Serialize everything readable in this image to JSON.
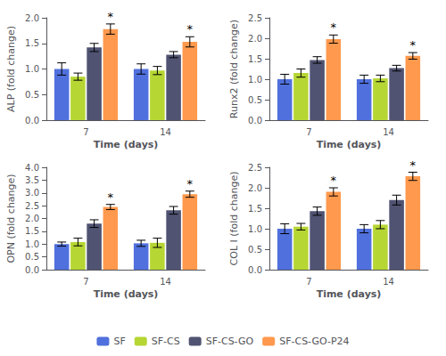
{
  "chart_data": [
    {
      "type": "bar",
      "xlabel": "Time (days)",
      "ylabel": "ALP (fold change)",
      "categories": [
        "7",
        "14"
      ],
      "series": [
        {
          "name": "SF",
          "values": [
            1.0,
            1.0
          ],
          "errors": [
            0.12,
            0.1
          ]
        },
        {
          "name": "SF-CS",
          "values": [
            0.85,
            0.97
          ],
          "errors": [
            0.07,
            0.08
          ]
        },
        {
          "name": "SF-CS-GO",
          "values": [
            1.42,
            1.28
          ],
          "errors": [
            0.08,
            0.06
          ]
        },
        {
          "name": "SF-CS-GO-P24",
          "values": [
            1.78,
            1.53
          ],
          "errors": [
            0.1,
            0.1
          ]
        }
      ],
      "annotations": [
        {
          "text": "*",
          "x": "7",
          "series": "SF-CS-GO-P24"
        },
        {
          "text": "*",
          "x": "14",
          "series": "SF-CS-GO-P24"
        }
      ],
      "ylim": [
        0,
        2
      ],
      "yticks": [
        {
          "value": 0,
          "label": "0.0"
        },
        0.5,
        {
          "value": 1,
          "label": "1.0"
        },
        1.5,
        {
          "value": 2,
          "label": "2.0"
        }
      ],
      "grid": false,
      "legend": "bottom"
    },
    {
      "type": "bar",
      "xlabel": "Time (days)",
      "ylabel": "Runx2 (fold change)",
      "categories": [
        "7",
        "14"
      ],
      "series": [
        {
          "name": "SF",
          "values": [
            1.0,
            1.0
          ],
          "errors": [
            0.12,
            0.1
          ]
        },
        {
          "name": "SF-CS",
          "values": [
            1.15,
            1.02
          ],
          "errors": [
            0.1,
            0.08
          ]
        },
        {
          "name": "SF-CS-GO",
          "values": [
            1.47,
            1.27
          ],
          "errors": [
            0.08,
            0.07
          ]
        },
        {
          "name": "SF-CS-GO-P24",
          "values": [
            1.98,
            1.57
          ],
          "errors": [
            0.1,
            0.08
          ]
        }
      ],
      "annotations": [
        {
          "text": "*",
          "x": "7",
          "series": "SF-CS-GO-P24"
        },
        {
          "text": "*",
          "x": "14",
          "series": "SF-CS-GO-P24"
        }
      ],
      "ylim": [
        0,
        2.5
      ],
      "yticks": [
        {
          "value": 0,
          "label": "0.0"
        },
        0.5,
        {
          "value": 1,
          "label": "1.0"
        },
        1.5,
        {
          "value": 2,
          "label": "2.0"
        },
        2.5
      ],
      "grid": false,
      "legend": "bottom"
    },
    {
      "type": "bar",
      "xlabel": "Time (days)",
      "ylabel": "OPN (fold change)",
      "categories": [
        "7",
        "14"
      ],
      "series": [
        {
          "name": "SF",
          "values": [
            1.0,
            1.03
          ],
          "errors": [
            0.08,
            0.12
          ]
        },
        {
          "name": "SF-CS",
          "values": [
            1.08,
            1.05
          ],
          "errors": [
            0.15,
            0.18
          ]
        },
        {
          "name": "SF-CS-GO",
          "values": [
            1.8,
            2.32
          ],
          "errors": [
            0.15,
            0.15
          ]
        },
        {
          "name": "SF-CS-GO-P24",
          "values": [
            2.45,
            2.95
          ],
          "errors": [
            0.1,
            0.12
          ]
        }
      ],
      "annotations": [
        {
          "text": "*",
          "x": "7",
          "series": "SF-CS-GO-P24"
        },
        {
          "text": "*",
          "x": "14",
          "series": "SF-CS-GO-P24"
        }
      ],
      "ylim": [
        0,
        4
      ],
      "yticks": [
        {
          "value": 0,
          "label": "0.0"
        },
        0.5,
        {
          "value": 1,
          "label": "1.0"
        },
        1.5,
        {
          "value": 2,
          "label": "2.0"
        },
        2.5,
        {
          "value": 3,
          "label": "3.0"
        },
        3.5,
        {
          "value": 4,
          "label": "4.0"
        }
      ],
      "grid": false,
      "legend": "bottom"
    },
    {
      "type": "bar",
      "xlabel": "Time (days)",
      "ylabel": "COL I (fold change)",
      "categories": [
        "7",
        "14"
      ],
      "series": [
        {
          "name": "SF",
          "values": [
            1.0,
            1.0
          ],
          "errors": [
            0.12,
            0.1
          ]
        },
        {
          "name": "SF-CS",
          "values": [
            1.05,
            1.1
          ],
          "errors": [
            0.08,
            0.1
          ]
        },
        {
          "name": "SF-CS-GO",
          "values": [
            1.43,
            1.7
          ],
          "errors": [
            0.1,
            0.12
          ]
        },
        {
          "name": "SF-CS-GO-P24",
          "values": [
            1.9,
            2.28
          ],
          "errors": [
            0.1,
            0.1
          ]
        }
      ],
      "annotations": [
        {
          "text": "*",
          "x": "7",
          "series": "SF-CS-GO-P24"
        },
        {
          "text": "*",
          "x": "14",
          "series": "SF-CS-GO-P24"
        }
      ],
      "ylim": [
        0,
        2.5
      ],
      "yticks": [
        {
          "value": 0,
          "label": "0.0"
        },
        0.5,
        {
          "value": 1,
          "label": "1.0"
        },
        1.5,
        {
          "value": 2,
          "label": "2.0"
        },
        2.5
      ],
      "grid": false,
      "legend": "bottom"
    }
  ]
}
